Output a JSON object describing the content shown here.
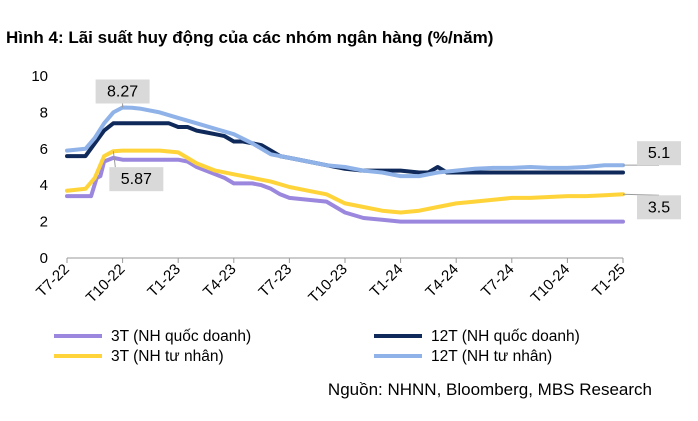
{
  "title": "Hình 4: Lãi suất huy động của các nhóm ngân hàng (%/năm)",
  "source": "Nguồn: NHNN, Bloomberg, MBS Research",
  "chart_data": {
    "type": "line",
    "x_tick_labels": [
      "T7-22",
      "T10-22",
      "T1-23",
      "T4-23",
      "T7-23",
      "T10-23",
      "T1-24",
      "T4-24",
      "T7-24",
      "T10-24",
      "T1-25"
    ],
    "y_tick_labels": [
      "0",
      "2",
      "4",
      "6",
      "8",
      "10"
    ],
    "ylim": [
      0,
      10
    ],
    "grid": false,
    "legend_position": "bottom",
    "series": [
      {
        "name": "3T (NH quốc doanh)",
        "color": "#9b87dd",
        "x": [
          0,
          0.5,
          1,
          1.3,
          1.6,
          1.8,
          2,
          2.5,
          3,
          3.5,
          4,
          4.5,
          5,
          5.5,
          6,
          6.5,
          7,
          7.5,
          8,
          8.5,
          9,
          9.5,
          10,
          10.5,
          11,
          11.5,
          12,
          13,
          14,
          15,
          16,
          17,
          18,
          19,
          20,
          21,
          22,
          23,
          24,
          25,
          26,
          27,
          28,
          29,
          30
        ],
        "y": [
          3.4,
          3.4,
          3.4,
          3.4,
          4.4,
          4.5,
          5.3,
          5.5,
          5.4,
          5.4,
          5.4,
          5.4,
          5.4,
          5.4,
          5.4,
          5.3,
          5.0,
          4.8,
          4.6,
          4.4,
          4.1,
          4.1,
          4.1,
          4.0,
          3.8,
          3.5,
          3.3,
          3.2,
          3.1,
          2.5,
          2.2,
          2.1,
          2.0,
          2.0,
          2.0,
          2.0,
          2.0,
          2.0,
          2.0,
          2.0,
          2.0,
          2.0,
          2.0,
          2.0,
          2.0
        ]
      },
      {
        "name": "12T (NH quốc doanh)",
        "color": "#0f2a5a",
        "x": [
          0,
          0.5,
          1,
          1.5,
          2,
          2.5,
          3,
          3.5,
          4,
          4.5,
          5,
          5.5,
          6,
          6.5,
          7,
          7.5,
          8,
          8.5,
          9,
          9.5,
          10,
          10.5,
          11,
          11.5,
          12,
          13,
          14,
          15,
          16,
          17,
          18,
          19,
          19.5,
          20,
          20.5,
          21,
          22,
          23,
          24,
          25,
          26,
          27,
          28,
          29,
          30
        ],
        "y": [
          5.6,
          5.6,
          5.6,
          6.3,
          7.0,
          7.4,
          7.4,
          7.4,
          7.4,
          7.4,
          7.4,
          7.4,
          7.2,
          7.2,
          7.0,
          6.9,
          6.8,
          6.7,
          6.4,
          6.4,
          6.3,
          6.2,
          5.9,
          5.6,
          5.5,
          5.3,
          5.1,
          4.9,
          4.8,
          4.8,
          4.8,
          4.7,
          4.7,
          5.0,
          4.7,
          4.7,
          4.7,
          4.7,
          4.7,
          4.7,
          4.7,
          4.7,
          4.7,
          4.7,
          4.7
        ]
      },
      {
        "name": "3T (NH tư nhân)",
        "color": "#ffd43b",
        "x": [
          0,
          1,
          1.5,
          2,
          2.5,
          3,
          4,
          5,
          6,
          7,
          8,
          9,
          10,
          11,
          12,
          13,
          14,
          15,
          16,
          17,
          18,
          19,
          20,
          21,
          22,
          23,
          24,
          25,
          26,
          27,
          28,
          29,
          30
        ],
        "y": [
          3.7,
          3.8,
          4.4,
          5.6,
          5.87,
          5.9,
          5.9,
          5.9,
          5.8,
          5.2,
          4.8,
          4.6,
          4.4,
          4.2,
          3.9,
          3.7,
          3.5,
          3.0,
          2.8,
          2.6,
          2.5,
          2.6,
          2.8,
          3.0,
          3.1,
          3.2,
          3.3,
          3.3,
          3.35,
          3.4,
          3.4,
          3.45,
          3.5
        ]
      },
      {
        "name": "12T (NH tư nhân)",
        "color": "#8fb2e8",
        "x": [
          0,
          1,
          1.5,
          2,
          2.5,
          3,
          3.5,
          4,
          5,
          6,
          7,
          8,
          9,
          10,
          11,
          12,
          13,
          14,
          15,
          16,
          17,
          18,
          19,
          20,
          21,
          22,
          23,
          24,
          25,
          26,
          27,
          28,
          29,
          30
        ],
        "y": [
          5.9,
          6.0,
          6.6,
          7.4,
          8.0,
          8.27,
          8.25,
          8.2,
          8.0,
          7.7,
          7.4,
          7.1,
          6.8,
          6.3,
          5.7,
          5.5,
          5.3,
          5.1,
          5.0,
          4.8,
          4.7,
          4.5,
          4.5,
          4.7,
          4.8,
          4.9,
          4.95,
          4.95,
          5.0,
          4.95,
          4.95,
          5.0,
          5.1,
          5.1
        ]
      }
    ],
    "annotations": [
      {
        "text": "8.27",
        "series": "12T (NH tư nhân)",
        "x": 3,
        "y": 8.27
      },
      {
        "text": "5.87",
        "series": "3T (NH tư nhân)",
        "x": 2.5,
        "y": 5.87
      },
      {
        "text": "5.1",
        "series": "12T (NH tư nhân)",
        "x": 30,
        "y": 5.1
      },
      {
        "text": "3.5",
        "series": "3T (NH tư nhân)",
        "x": 30,
        "y": 3.5
      }
    ]
  }
}
